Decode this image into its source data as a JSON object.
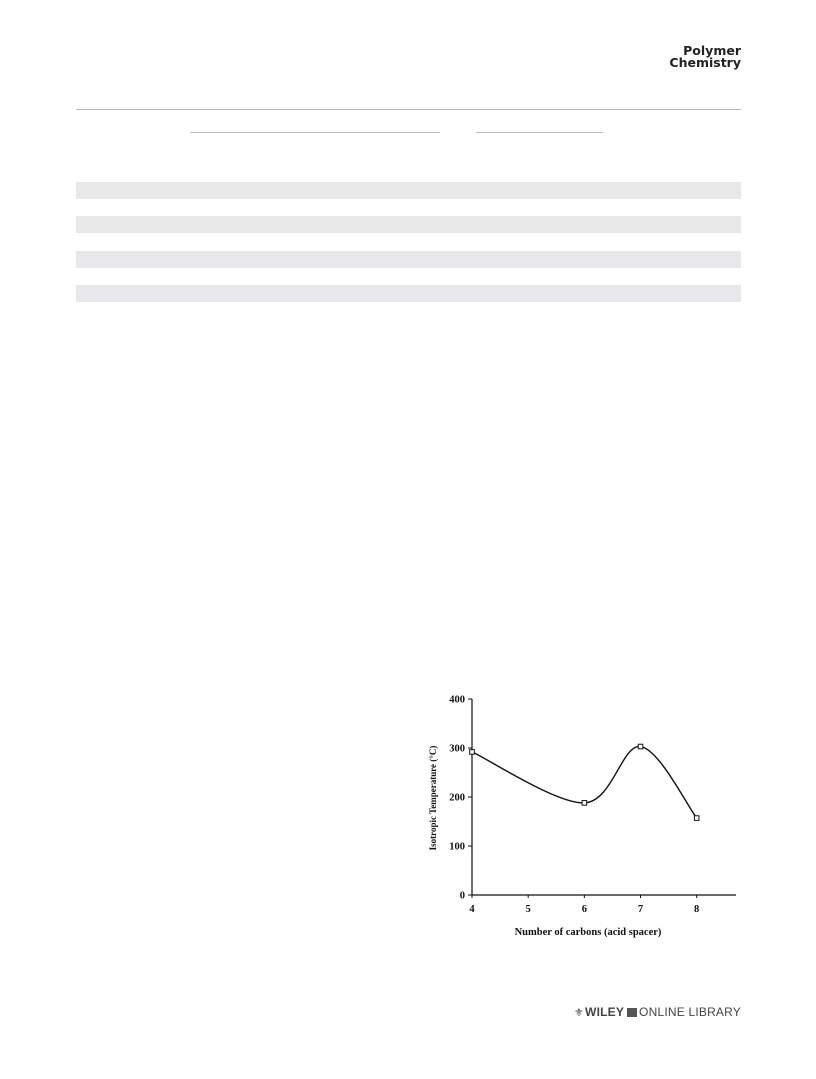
{
  "header": {
    "journal_line1": "Polymer",
    "journal_line2": "Chemistry"
  },
  "footer": {
    "publisher": "WILEY",
    "library": "ONLINE LIBRARY"
  },
  "chart_data": {
    "type": "line",
    "title": "",
    "xlabel": "Number of carbons (acid spacer)",
    "ylabel": "Isotropic Temperature (°C)",
    "x_ticks": [
      4,
      5,
      6,
      7,
      8
    ],
    "y_ticks": [
      0,
      100,
      200,
      300,
      400
    ],
    "xlim": [
      4,
      8.7
    ],
    "ylim": [
      0,
      400
    ],
    "grid": false,
    "series": [
      {
        "x": [
          4,
          6,
          7,
          8
        ],
        "y": [
          292,
          188,
          303,
          157
        ]
      }
    ]
  }
}
